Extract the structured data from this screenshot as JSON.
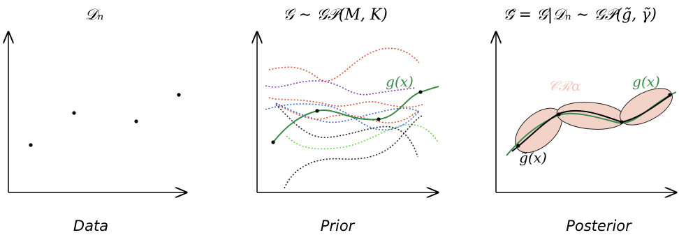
{
  "panels": {
    "data": {
      "title": "𝒟ₙ",
      "caption": "Data"
    },
    "prior": {
      "title": "𝒢 ∼ 𝒢𝒫(M, K)",
      "caption": "Prior",
      "curve_label": "g(x)"
    },
    "posterior": {
      "title": "𝒢̃ = 𝒢|𝒟ₙ ∼ 𝒢𝒫(g̃, γ̃)",
      "caption": "Posterior",
      "curve_label": "g(x)",
      "mean_label": "g̃(x)",
      "region_label": "𝒞ℛα"
    }
  },
  "colors": {
    "true_function": "#3a8a4a",
    "credible_region": "#f3d2c8",
    "sample_red": "#e0503a",
    "sample_purple": "#8a3ac0",
    "sample_blue": "#3a6ad8",
    "sample_green": "#6ad84a",
    "sample_black": "#222222"
  }
}
